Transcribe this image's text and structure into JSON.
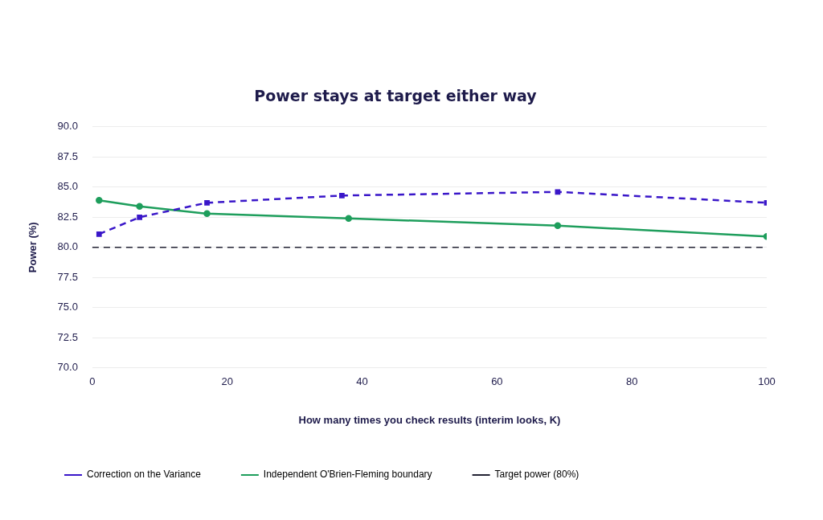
{
  "chart_data": {
    "type": "line",
    "title": "Power stays at target either way",
    "xlabel": "How many times you check results (interim looks, K)",
    "ylabel": "Power (%)",
    "xlim": [
      0,
      100
    ],
    "xticks": [
      0,
      20,
      40,
      60,
      80,
      100
    ],
    "ylim": [
      70,
      90
    ],
    "yticks": [
      {
        "value": 70,
        "label": "70.0"
      },
      {
        "value": 72.5,
        "label": "72.5"
      },
      {
        "value": 75,
        "label": "75.0"
      },
      {
        "value": 77.5,
        "label": "77.5"
      },
      {
        "value": 80,
        "label": "80.0"
      },
      {
        "value": 82.5,
        "label": "82.5"
      },
      {
        "value": 85,
        "label": "85.0"
      },
      {
        "value": 87.5,
        "label": "87.5"
      },
      {
        "value": 90,
        "label": "90.0"
      }
    ],
    "grid": "y",
    "legend": "bottom",
    "series": [
      {
        "name": "Correction on the Variance",
        "color": "#3a17c9",
        "x": [
          1,
          7,
          17,
          37,
          69,
          100
        ],
        "values": [
          81.1,
          82.5,
          83.7,
          84.3,
          84.6,
          83.7
        ],
        "marker": "square",
        "line_style": "dashed"
      },
      {
        "name": "Independent O'Brien-Fleming boundary",
        "color": "#1e9e5c",
        "x": [
          1,
          7,
          17,
          38,
          69,
          100
        ],
        "values": [
          83.9,
          83.4,
          82.8,
          82.4,
          81.8,
          80.9
        ],
        "marker": "circle",
        "line_style": "solid"
      }
    ],
    "ref_lines": [
      {
        "axis": "y",
        "value": 80,
        "label": "Target power (80%)",
        "color": "#222233",
        "line_style": "dashed"
      }
    ]
  }
}
